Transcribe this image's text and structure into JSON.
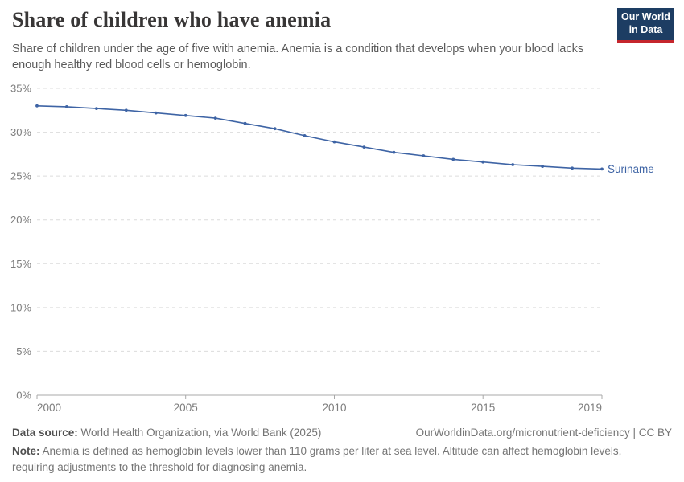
{
  "header": {
    "title": "Share of children who have anemia",
    "subtitle": "Share of children under the age of five with anemia. Anemia is a condition that develops when your blood lacks enough healthy red blood cells or hemoglobin.",
    "logo": {
      "line1": "Our World",
      "line2": "in Data"
    },
    "logo_colors": {
      "background": "#1d3d63",
      "underline": "#c5262d"
    }
  },
  "chart_data": {
    "type": "line",
    "x": [
      2000,
      2001,
      2002,
      2003,
      2004,
      2005,
      2006,
      2007,
      2008,
      2009,
      2010,
      2011,
      2012,
      2013,
      2014,
      2015,
      2016,
      2017,
      2018,
      2019
    ],
    "series": [
      {
        "name": "Suriname",
        "color": "#3e64a5",
        "values": [
          33.0,
          32.9,
          32.7,
          32.5,
          32.2,
          31.9,
          31.6,
          31.0,
          30.4,
          29.6,
          28.9,
          28.3,
          27.7,
          27.3,
          26.9,
          26.6,
          26.3,
          26.1,
          25.9,
          25.8
        ]
      }
    ],
    "title": "Share of children who have anemia",
    "xlabel": "",
    "ylabel": "",
    "xlim": [
      2000,
      2019
    ],
    "ylim": [
      0,
      35
    ],
    "x_ticks": [
      2000,
      2005,
      2010,
      2015,
      2019
    ],
    "y_ticks": [
      0,
      5,
      10,
      15,
      20,
      25,
      30,
      35
    ],
    "y_tick_suffix": "%",
    "grid": true,
    "legend_position": "end-of-line",
    "end_label": "Suriname"
  },
  "footer": {
    "datasource_label": "Data source:",
    "datasource_value": " World Health Organization, via World Bank (2025)",
    "attribution": "OurWorldinData.org/micronutrient-deficiency | CC BY",
    "note_label": "Note:",
    "note_value": " Anemia is defined as hemoglobin levels lower than 110 grams per liter at sea level. Altitude can affect hemoglobin levels, requiring adjustments to the threshold for diagnosing anemia."
  }
}
